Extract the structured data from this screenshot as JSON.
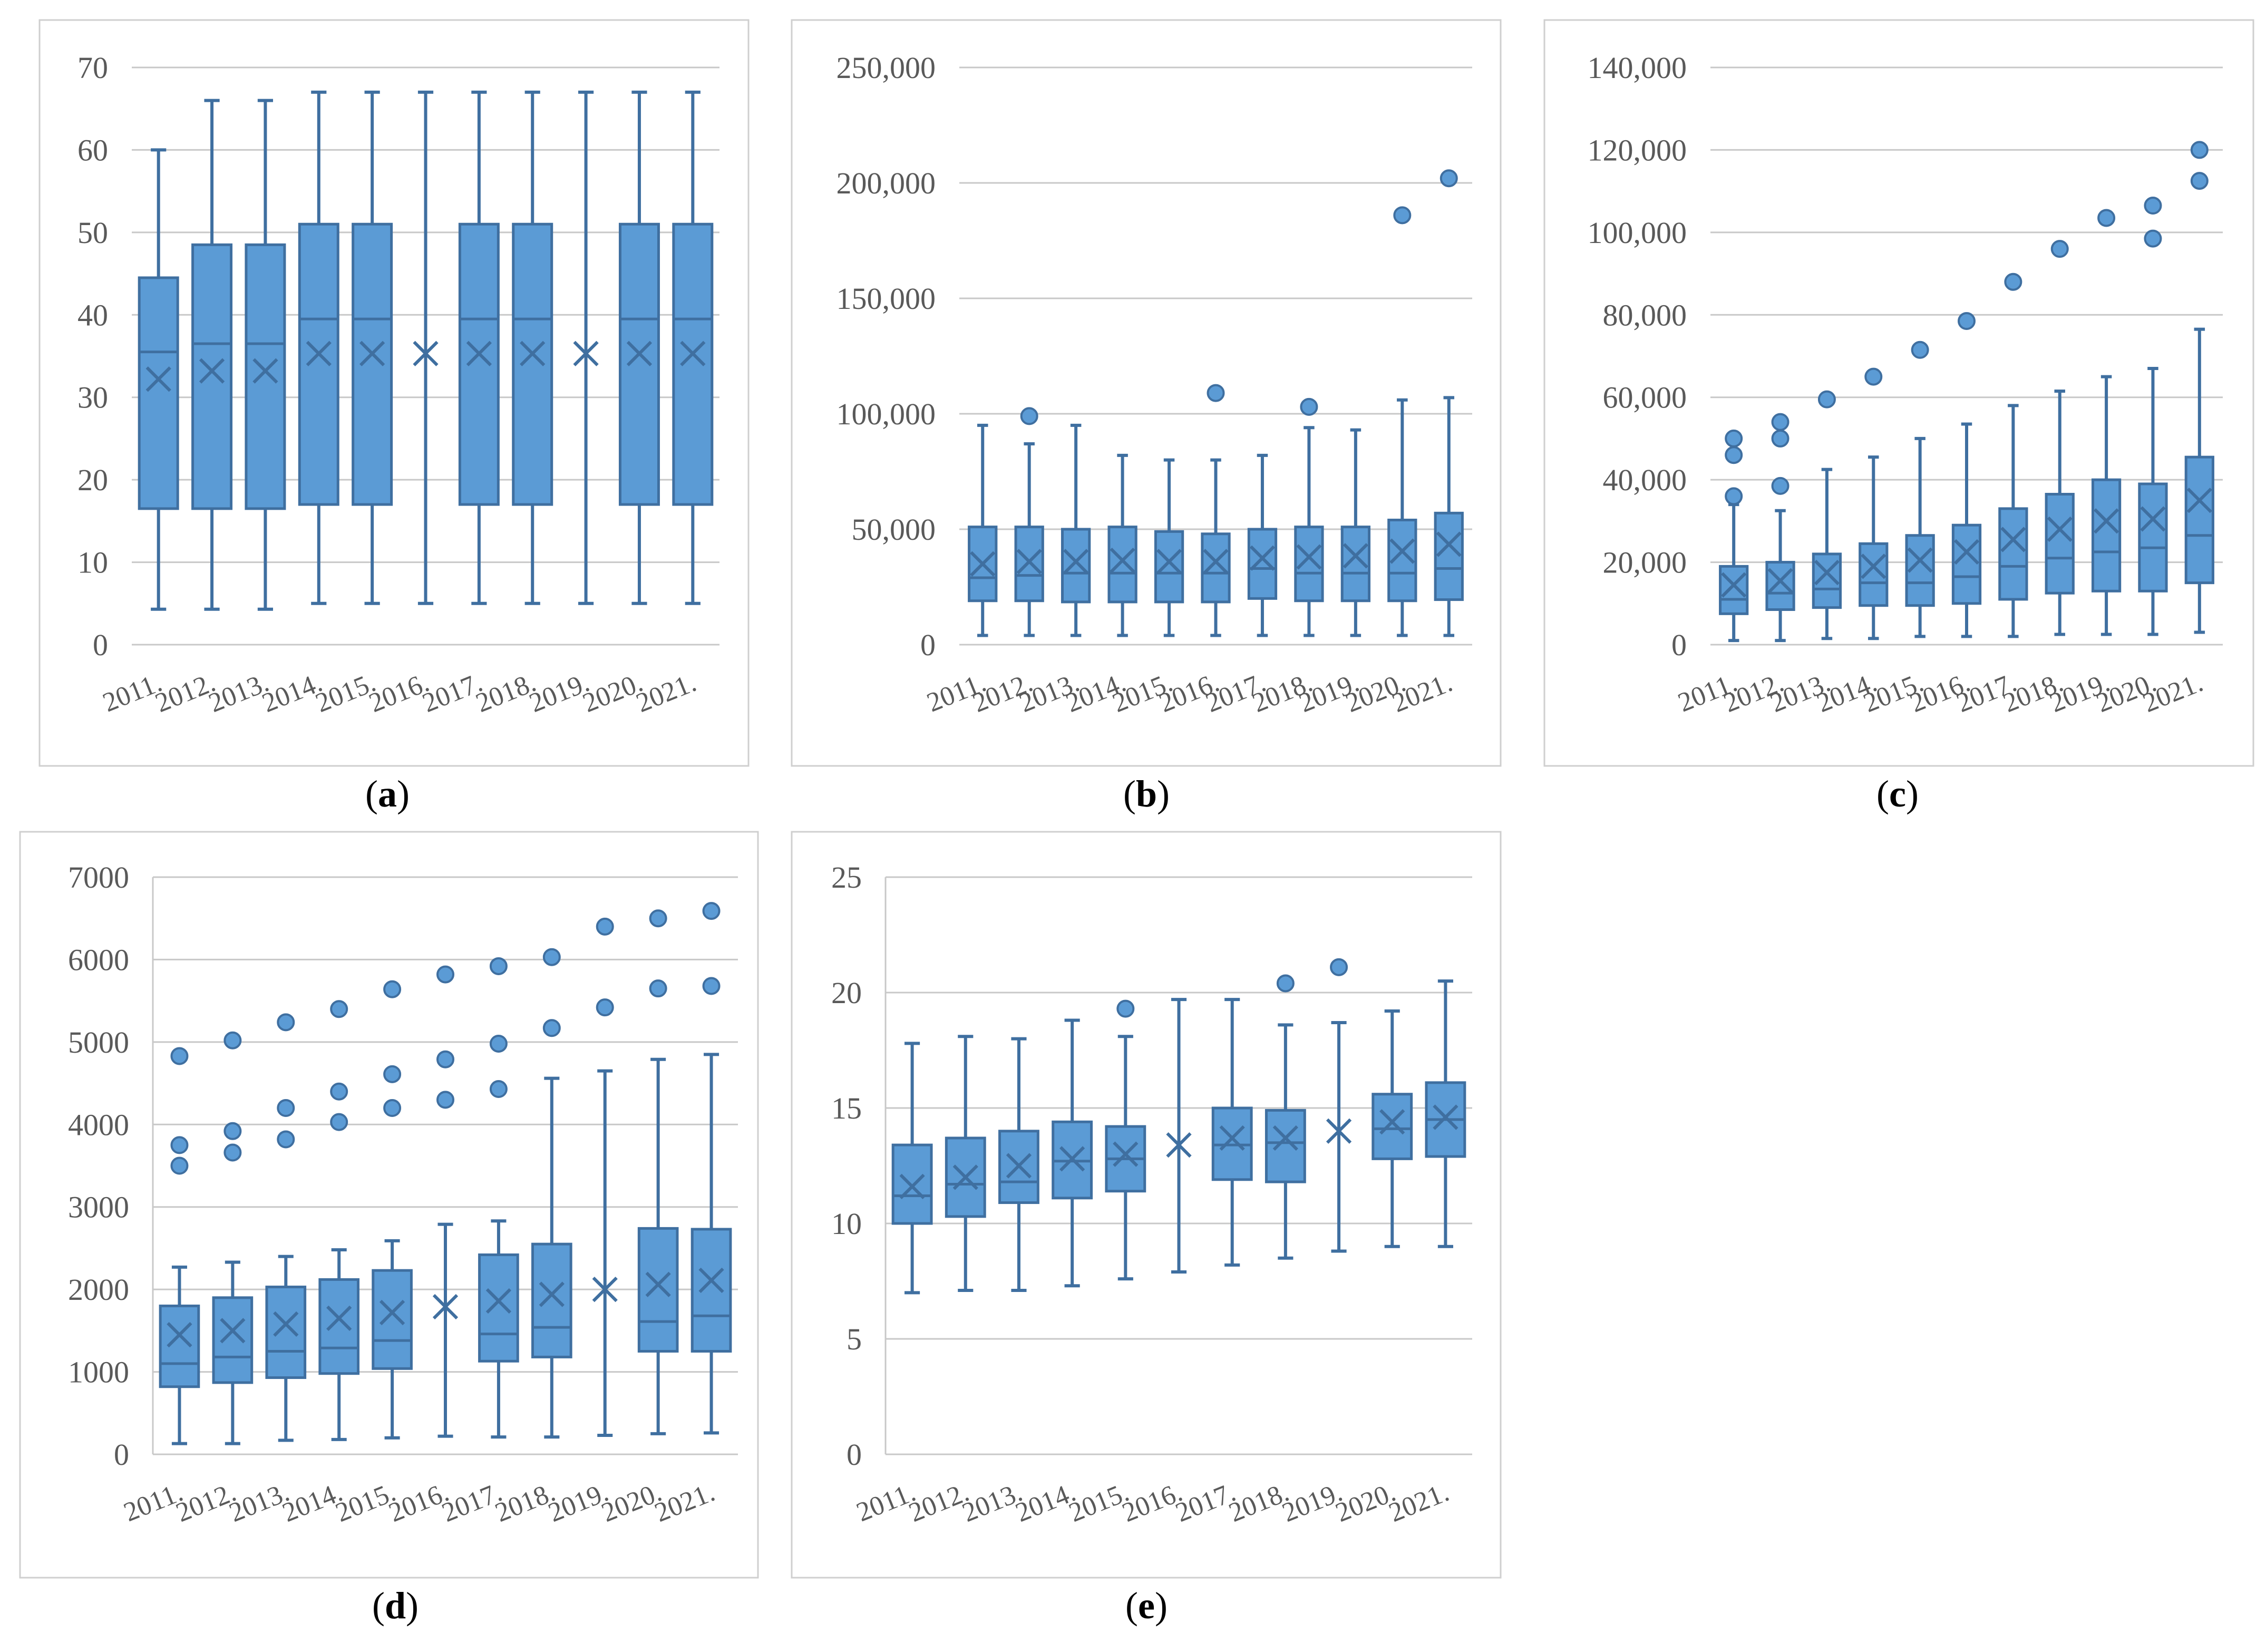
{
  "chart_data": [
    {
      "id": "a",
      "type": "box",
      "caption": "a",
      "categories": [
        "2011.",
        "2012.",
        "2013.",
        "2014.",
        "2015.",
        "2016.",
        "2017.",
        "2018.",
        "2019.",
        "2020.",
        "2021."
      ],
      "ylim": [
        0,
        70
      ],
      "yticks": [
        "0",
        "10",
        "20",
        "30",
        "40",
        "50",
        "60",
        "70"
      ],
      "ytick_values": [
        0,
        10,
        20,
        30,
        40,
        50,
        60,
        70
      ],
      "boxes": [
        {
          "min": 4.3,
          "q1": 16.5,
          "median": 35.5,
          "q3": 44.5,
          "max": 60,
          "mean": 32.2,
          "outliers": []
        },
        {
          "min": 4.3,
          "q1": 16.5,
          "median": 36.5,
          "q3": 48.5,
          "max": 66,
          "mean": 33.2,
          "outliers": []
        },
        {
          "min": 4.3,
          "q1": 16.5,
          "median": 36.5,
          "q3": 48.5,
          "max": 66,
          "mean": 33.2,
          "outliers": []
        },
        {
          "min": 5,
          "q1": 17,
          "median": 39.5,
          "q3": 51,
          "max": 67,
          "mean": 35.3,
          "outliers": []
        },
        {
          "min": 5,
          "q1": 17,
          "median": 39.5,
          "q3": 51,
          "max": 67,
          "mean": 35.3,
          "outliers": []
        },
        {
          "min": 5,
          "q1": null,
          "median": null,
          "q3": null,
          "max": 67,
          "mean": 35.3,
          "outliers": []
        },
        {
          "min": 5,
          "q1": 17,
          "median": 39.5,
          "q3": 51,
          "max": 67,
          "mean": 35.3,
          "outliers": []
        },
        {
          "min": 5,
          "q1": 17,
          "median": 39.5,
          "q3": 51,
          "max": 67,
          "mean": 35.3,
          "outliers": []
        },
        {
          "min": 5,
          "q1": null,
          "median": null,
          "q3": null,
          "max": 67,
          "mean": 35.3,
          "outliers": []
        },
        {
          "min": 5,
          "q1": 17,
          "median": 39.5,
          "q3": 51,
          "max": 67,
          "mean": 35.3,
          "outliers": []
        },
        {
          "min": 5,
          "q1": 17,
          "median": 39.5,
          "q3": 51,
          "max": 67,
          "mean": 35.3,
          "outliers": []
        }
      ]
    },
    {
      "id": "b",
      "type": "box",
      "caption": "b",
      "categories": [
        "2011.",
        "2012.",
        "2013.",
        "2014.",
        "2015.",
        "2016.",
        "2017.",
        "2018.",
        "2019.",
        "2020.",
        "2021."
      ],
      "ylim": [
        0,
        250000
      ],
      "yticks": [
        "0",
        "50,000",
        "100,000",
        "150,000",
        "200,000",
        "250,000"
      ],
      "ytick_values": [
        0,
        50000,
        100000,
        150000,
        200000,
        250000
      ],
      "boxes": [
        {
          "min": 4000,
          "q1": 19000,
          "median": 29000,
          "q3": 51000,
          "max": 95000,
          "mean": 35000,
          "outliers": []
        },
        {
          "min": 4000,
          "q1": 19000,
          "median": 30000,
          "q3": 51000,
          "max": 87000,
          "mean": 36000,
          "outliers": [
            99000
          ]
        },
        {
          "min": 4000,
          "q1": 18500,
          "median": 31000,
          "q3": 50000,
          "max": 95000,
          "mean": 36000,
          "outliers": []
        },
        {
          "min": 4000,
          "q1": 18500,
          "median": 31000,
          "q3": 51000,
          "max": 82000,
          "mean": 36500,
          "outliers": []
        },
        {
          "min": 4000,
          "q1": 18500,
          "median": 31000,
          "q3": 49000,
          "max": 80000,
          "mean": 36000,
          "outliers": []
        },
        {
          "min": 4000,
          "q1": 18500,
          "median": 31000,
          "q3": 48000,
          "max": 80000,
          "mean": 36000,
          "outliers": [
            109000
          ]
        },
        {
          "min": 4000,
          "q1": 20000,
          "median": 33000,
          "q3": 50000,
          "max": 82000,
          "mean": 37500,
          "outliers": []
        },
        {
          "min": 4000,
          "q1": 19000,
          "median": 31000,
          "q3": 51000,
          "max": 94000,
          "mean": 38000,
          "outliers": [
            103000
          ]
        },
        {
          "min": 4000,
          "q1": 19000,
          "median": 31000,
          "q3": 51000,
          "max": 93000,
          "mean": 38500,
          "outliers": []
        },
        {
          "min": 4000,
          "q1": 19000,
          "median": 31000,
          "q3": 54000,
          "max": 106000,
          "mean": 40500,
          "outliers": [
            186000
          ]
        },
        {
          "min": 4000,
          "q1": 19500,
          "median": 33000,
          "q3": 57000,
          "max": 107000,
          "mean": 43500,
          "outliers": [
            202000
          ]
        }
      ]
    },
    {
      "id": "c",
      "type": "box",
      "caption": "c",
      "categories": [
        "2011.",
        "2012.",
        "2013.",
        "2014.",
        "2015.",
        "2016.",
        "2017.",
        "2018.",
        "2019.",
        "2020.",
        "2021."
      ],
      "ylim": [
        0,
        140000
      ],
      "yticks": [
        "0",
        "20,000",
        "40,000",
        "60,000",
        "80,000",
        "100,000",
        "120,000",
        "140,000"
      ],
      "ytick_values": [
        0,
        20000,
        40000,
        60000,
        80000,
        100000,
        120000,
        140000
      ],
      "boxes": [
        {
          "min": 1000,
          "q1": 7500,
          "median": 11000,
          "q3": 19000,
          "max": 34000,
          "mean": 14500,
          "outliers": [
            36000,
            46000,
            50000
          ]
        },
        {
          "min": 1000,
          "q1": 8500,
          "median": 12500,
          "q3": 20000,
          "max": 32500,
          "mean": 15500,
          "outliers": [
            38500,
            50000,
            54000
          ]
        },
        {
          "min": 1500,
          "q1": 9000,
          "median": 13500,
          "q3": 22000,
          "max": 42500,
          "mean": 17500,
          "outliers": [
            59500
          ]
        },
        {
          "min": 1500,
          "q1": 9500,
          "median": 15000,
          "q3": 24500,
          "max": 45500,
          "mean": 19000,
          "outliers": [
            65000
          ]
        },
        {
          "min": 2000,
          "q1": 9500,
          "median": 15000,
          "q3": 26500,
          "max": 50000,
          "mean": 20500,
          "outliers": [
            71500
          ]
        },
        {
          "min": 2000,
          "q1": 10000,
          "median": 16500,
          "q3": 29000,
          "max": 53500,
          "mean": 22500,
          "outliers": [
            78500
          ]
        },
        {
          "min": 2000,
          "q1": 11000,
          "median": 19000,
          "q3": 33000,
          "max": 58000,
          "mean": 25500,
          "outliers": [
            88000
          ]
        },
        {
          "min": 2500,
          "q1": 12500,
          "median": 21000,
          "q3": 36500,
          "max": 61500,
          "mean": 28000,
          "outliers": [
            96000
          ]
        },
        {
          "min": 2500,
          "q1": 13000,
          "median": 22500,
          "q3": 40000,
          "max": 65000,
          "mean": 30000,
          "outliers": [
            103500
          ]
        },
        {
          "min": 2500,
          "q1": 13000,
          "median": 23500,
          "q3": 39000,
          "max": 67000,
          "mean": 30500,
          "outliers": [
            98500,
            106500
          ]
        },
        {
          "min": 3000,
          "q1": 15000,
          "median": 26500,
          "q3": 45500,
          "max": 76500,
          "mean": 35000,
          "outliers": [
            112500,
            120000
          ]
        }
      ]
    },
    {
      "id": "d",
      "type": "box",
      "caption": "d",
      "categories": [
        "2011.",
        "2012.",
        "2013.",
        "2014.",
        "2015.",
        "2016.",
        "2017.",
        "2018.",
        "2019.",
        "2020.",
        "2021."
      ],
      "ylim": [
        0,
        7000
      ],
      "yticks": [
        "0",
        "1000",
        "2000",
        "3000",
        "4000",
        "5000",
        "6000",
        "7000"
      ],
      "ytick_values": [
        0,
        1000,
        2000,
        3000,
        4000,
        5000,
        6000,
        7000
      ],
      "boxes": [
        {
          "min": 130,
          "q1": 820,
          "median": 1100,
          "q3": 1800,
          "max": 2270,
          "mean": 1450,
          "outliers": [
            3500,
            3750,
            4830
          ]
        },
        {
          "min": 130,
          "q1": 870,
          "median": 1180,
          "q3": 1900,
          "max": 2330,
          "mean": 1500,
          "outliers": [
            3660,
            3920,
            5020
          ]
        },
        {
          "min": 170,
          "q1": 930,
          "median": 1250,
          "q3": 2030,
          "max": 2400,
          "mean": 1580,
          "outliers": [
            3820,
            4200,
            5240
          ]
        },
        {
          "min": 180,
          "q1": 980,
          "median": 1290,
          "q3": 2120,
          "max": 2480,
          "mean": 1650,
          "outliers": [
            4030,
            4400,
            5400
          ]
        },
        {
          "min": 200,
          "q1": 1040,
          "median": 1380,
          "q3": 2230,
          "max": 2590,
          "mean": 1720,
          "outliers": [
            4200,
            4610,
            5640
          ]
        },
        {
          "min": 220,
          "q1": null,
          "median": null,
          "q3": null,
          "max": 2790,
          "mean": 1790,
          "outliers": [
            4300,
            4790,
            5820
          ]
        },
        {
          "min": 210,
          "q1": 1130,
          "median": 1460,
          "q3": 2420,
          "max": 2830,
          "mean": 1860,
          "outliers": [
            4430,
            4980,
            5920
          ]
        },
        {
          "min": 210,
          "q1": 1180,
          "median": 1540,
          "q3": 2550,
          "max": 4560,
          "mean": 1940,
          "outliers": [
            5170,
            6030
          ]
        },
        {
          "min": 230,
          "q1": null,
          "median": null,
          "q3": null,
          "max": 4650,
          "mean": 2000,
          "outliers": [
            5420,
            6400
          ]
        },
        {
          "min": 250,
          "q1": 1250,
          "median": 1610,
          "q3": 2740,
          "max": 4790,
          "mean": 2060,
          "outliers": [
            5650,
            6500
          ]
        },
        {
          "min": 260,
          "q1": 1250,
          "median": 1680,
          "q3": 2730,
          "max": 4850,
          "mean": 2110,
          "outliers": [
            5680,
            6590
          ]
        }
      ]
    },
    {
      "id": "e",
      "type": "box",
      "caption": "e",
      "categories": [
        "2011.",
        "2012.",
        "2013.",
        "2014.",
        "2015.",
        "2016.",
        "2017.",
        "2018.",
        "2019.",
        "2020.",
        "2021."
      ],
      "ylim": [
        0,
        25
      ],
      "yticks": [
        "0",
        "5",
        "10",
        "15",
        "20",
        "25"
      ],
      "ytick_values": [
        0,
        5,
        10,
        15,
        20,
        25
      ],
      "boxes": [
        {
          "min": 7,
          "q1": 10,
          "median": 11.2,
          "q3": 13.4,
          "max": 17.8,
          "mean": 11.6,
          "outliers": []
        },
        {
          "min": 7.1,
          "q1": 10.3,
          "median": 11.7,
          "q3": 13.7,
          "max": 18.1,
          "mean": 12.0,
          "outliers": []
        },
        {
          "min": 7.1,
          "q1": 10.9,
          "median": 11.8,
          "q3": 14.0,
          "max": 18.0,
          "mean": 12.5,
          "outliers": []
        },
        {
          "min": 7.3,
          "q1": 11.1,
          "median": 12.7,
          "q3": 14.4,
          "max": 18.8,
          "mean": 12.8,
          "outliers": []
        },
        {
          "min": 7.6,
          "q1": 11.4,
          "median": 12.8,
          "q3": 14.2,
          "max": 18.1,
          "mean": 13.0,
          "outliers": [
            19.3
          ]
        },
        {
          "min": 7.9,
          "q1": null,
          "median": null,
          "q3": null,
          "max": 19.7,
          "mean": 13.4,
          "outliers": []
        },
        {
          "min": 8.2,
          "q1": 11.9,
          "median": 13.4,
          "q3": 15.0,
          "max": 19.7,
          "mean": 13.7,
          "outliers": []
        },
        {
          "min": 8.5,
          "q1": 11.8,
          "median": 13.5,
          "q3": 14.9,
          "max": 18.6,
          "mean": 13.7,
          "outliers": [
            20.4
          ]
        },
        {
          "min": 8.8,
          "q1": null,
          "median": null,
          "q3": null,
          "max": 18.7,
          "mean": 14.0,
          "outliers": [
            21.1
          ]
        },
        {
          "min": 9.0,
          "q1": 12.8,
          "median": 14.1,
          "q3": 15.6,
          "max": 19.2,
          "mean": 14.4,
          "outliers": []
        },
        {
          "min": 9.0,
          "q1": 12.9,
          "median": 14.5,
          "q3": 16.1,
          "max": 20.5,
          "mean": 14.6,
          "outliers": []
        }
      ]
    }
  ]
}
